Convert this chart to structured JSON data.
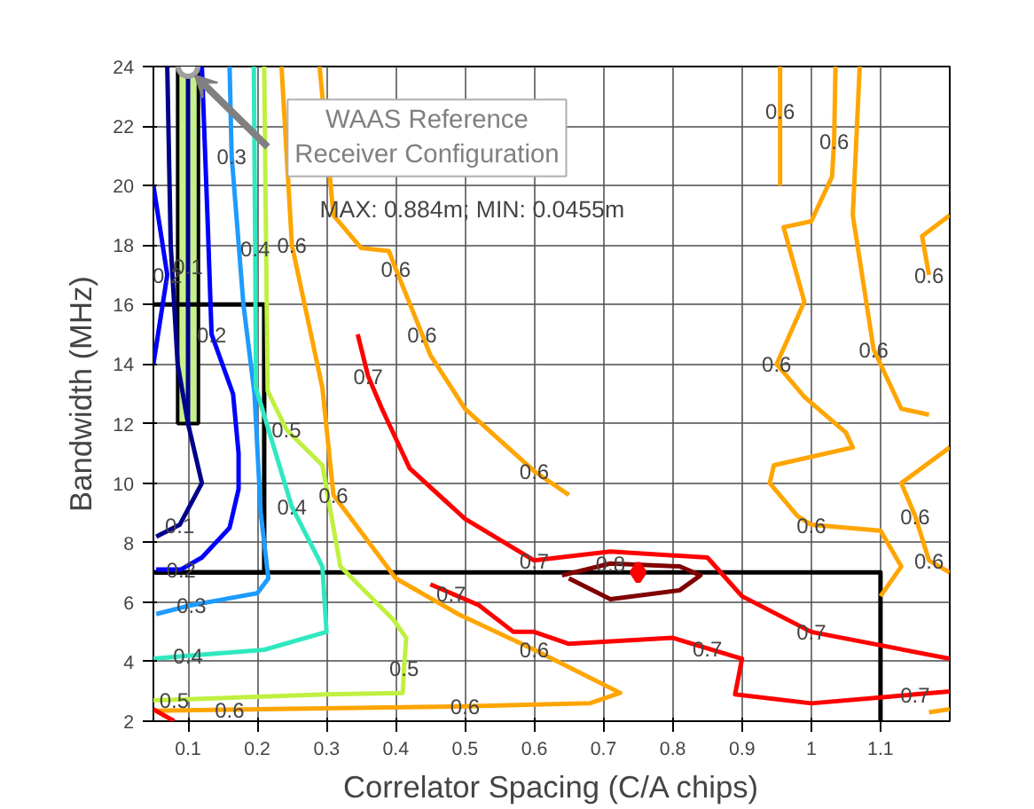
{
  "chart_data": {
    "type": "line",
    "xlabel": "Correlator Spacing (C/A chips)",
    "ylabel": "Bandwidth (MHz)",
    "xlim": [
      0.05,
      1.2
    ],
    "ylim": [
      2,
      24
    ],
    "xticks": [
      0.1,
      0.2,
      0.3,
      0.4,
      0.5,
      0.6,
      0.7,
      0.8,
      0.9,
      {
        "value": 1.0,
        "label": "1"
      },
      1.1
    ],
    "yticks": [
      2,
      4,
      6,
      8,
      10,
      12,
      14,
      16,
      18,
      20,
      22,
      24
    ],
    "grid": true,
    "line_style": "solid",
    "series": [
      {
        "type": "bar",
        "color": "#c8f08c",
        "x": [
          0.1
        ],
        "base": [
          12
        ],
        "values": [
          12
        ]
      },
      {
        "color": "#000000",
        "x": [
          0.05,
          0.21,
          0.21,
          0.05
        ],
        "values": [
          16,
          16,
          7,
          7
        ]
      },
      {
        "color": "#000000",
        "x": [
          0.05,
          1.1,
          1.1
        ],
        "values": [
          7,
          7,
          2
        ]
      },
      {
        "color": "#00008b",
        "x": [
          0.07,
          0.075,
          0.085,
          0.1,
          0.12,
          0.088,
          0.054
        ],
        "values": [
          24,
          18,
          14,
          12,
          10,
          8.6,
          8.2
        ]
      },
      {
        "color": "#00008b",
        "x": [
          0.1,
          0.1,
          0.1
        ],
        "values": [
          24,
          17.3,
          12
        ]
      },
      {
        "color": "#0000ff",
        "x": [
          0.12,
          0.128,
          0.134,
          0.165,
          0.173,
          0.173,
          0.16,
          0.12,
          0.09,
          0.054
        ],
        "values": [
          24,
          19,
          15,
          13,
          11,
          9.8,
          8.5,
          7.5,
          7.1,
          7.1
        ]
      },
      {
        "color": "#0000ff",
        "x": [
          0.05,
          0.07,
          0.05
        ],
        "values": [
          20,
          17,
          14
        ]
      },
      {
        "color": "#1e9bff",
        "x": [
          0.16,
          0.163,
          0.18,
          0.196,
          0.205,
          0.216,
          0.2,
          0.105,
          0.054
        ],
        "values": [
          24,
          21,
          16,
          13,
          9,
          6.8,
          6.3,
          5.9,
          5.6
        ]
      },
      {
        "color": "#30e8c0",
        "x": [
          0.195,
          0.197,
          0.198,
          0.25,
          0.294,
          0.3,
          0.21,
          0.1,
          0.05
        ],
        "values": [
          24,
          17.9,
          13.2,
          9.2,
          7.2,
          5.0,
          4.4,
          4.2,
          4.1
        ]
      },
      {
        "color": "#c0f040",
        "x": [
          0.21,
          0.215,
          0.242,
          0.294,
          0.32,
          0.397,
          0.415,
          0.412,
          0.41,
          0.3,
          0.08,
          0.05
        ],
        "values": [
          24,
          13.1,
          11.8,
          10.6,
          7.2,
          5.4,
          4.8,
          3.8,
          2.95,
          2.9,
          2.72,
          2.7
        ]
      },
      {
        "color": "#ffa500",
        "x": [
          0.235,
          0.25,
          0.294,
          0.31,
          0.4,
          0.49,
          0.6,
          0.724,
          0.68,
          0.5,
          0.16,
          0.05
        ],
        "values": [
          24,
          18,
          13.2,
          9.6,
          6.8,
          5.6,
          4.4,
          2.95,
          2.6,
          2.5,
          2.39,
          2.35
        ]
      },
      {
        "color": "#ffa500",
        "x": [
          0.29,
          0.31,
          0.35,
          0.39,
          0.4,
          0.438,
          0.45,
          0.5,
          0.6,
          0.65
        ],
        "values": [
          24,
          19,
          17.9,
          17.8,
          17.2,
          15.0,
          14.3,
          12.5,
          10.4,
          9.6
        ]
      },
      {
        "color": "#ffa500",
        "x": [
          0.955,
          0.955,
          0.955
        ],
        "values": [
          24,
          22.5,
          20
        ]
      },
      {
        "color": "#ffa500",
        "x": [
          1.035,
          1.033,
          1.03,
          1.0,
          0.96,
          0.99,
          0.95,
          0.99,
          1.05,
          1.06,
          0.946,
          0.94,
          0.98,
          1.0,
          1.1,
          1.13,
          1.1
        ],
        "values": [
          24,
          21.5,
          20.3,
          18.8,
          18.6,
          16.1,
          14,
          12.9,
          11.7,
          11.2,
          10.6,
          10,
          8.9,
          8.6,
          8.4,
          7.2,
          6.2
        ]
      },
      {
        "color": "#ffa500",
        "x": [
          1.07,
          1.06,
          1.09,
          1.13,
          1.17
        ],
        "values": [
          24,
          19,
          14.5,
          12.5,
          12.3
        ]
      },
      {
        "color": "#ffa500",
        "x": [
          1.2,
          1.16,
          1.17
        ],
        "values": [
          19,
          18.3,
          17
        ]
      },
      {
        "color": "#ffa500",
        "x": [
          1.2,
          1.13,
          1.15,
          1.17,
          1.2
        ],
        "values": [
          11.2,
          10,
          8.9,
          7.4,
          7
        ]
      },
      {
        "color": "#ffa500",
        "x": [
          1.2,
          1.17
        ],
        "values": [
          2.4,
          2.3
        ]
      },
      {
        "color": "#ff0000",
        "x": [
          0.345,
          0.36,
          0.38,
          0.42,
          0.5,
          0.6,
          0.71,
          0.85,
          0.9,
          1.0,
          1.2
        ],
        "values": [
          15,
          13.6,
          12.5,
          10.5,
          8.8,
          7.4,
          7.7,
          7.5,
          6.2,
          5.0,
          4.1
        ]
      },
      {
        "color": "#ff0000",
        "x": [
          0.45,
          0.48,
          0.52,
          0.57,
          0.6,
          0.65,
          0.8,
          0.85,
          0.9,
          0.89,
          1.0,
          1.1,
          1.15,
          1.2
        ],
        "values": [
          6.6,
          6.3,
          5.9,
          5.0,
          5.0,
          4.6,
          4.8,
          4.45,
          4.1,
          2.9,
          2.6,
          2.8,
          2.9,
          3.0
        ]
      },
      {
        "color": "#ff0000",
        "x": [
          0.05,
          0.08
        ],
        "values": [
          2.4,
          2.0
        ]
      },
      {
        "color": "#800000",
        "x": [
          0.64,
          0.71,
          0.81,
          0.84,
          0.81,
          0.71,
          0.65
        ],
        "values": [
          6.9,
          7.3,
          7.2,
          6.9,
          6.4,
          6.1,
          6.8
        ]
      },
      {
        "type": "scatter",
        "marker": "diamond",
        "color": "#ff0000",
        "x": [
          0.75
        ],
        "values": [
          7
        ]
      }
    ],
    "annotations": [
      {
        "text": "WAAS Reference Receiver Configuration",
        "x": 0.1,
        "y": 24
      },
      "MAX: 0.884m; MIN: 0.0455m",
      {
        "text": "0.3",
        "x": 0.163,
        "y": 21
      },
      {
        "text": "0.1",
        "x": 0.1,
        "y": 17.3
      },
      {
        "text": "0.2",
        "x": 0.07,
        "y": 17
      },
      {
        "text": "0.4",
        "x": 0.197,
        "y": 17.9
      },
      {
        "text": "0.2",
        "x": 0.134,
        "y": 15
      },
      {
        "text": "0.6",
        "x": 0.25,
        "y": 18
      },
      {
        "text": "0.6",
        "x": 0.4,
        "y": 17.2
      },
      {
        "text": "0.6",
        "x": 0.438,
        "y": 15.0
      },
      {
        "text": "0.7",
        "x": 0.36,
        "y": 13.6
      },
      {
        "text": "0.5",
        "x": 0.242,
        "y": 11.8
      },
      {
        "text": "0.6",
        "x": 0.31,
        "y": 9.6
      },
      {
        "text": "0.4",
        "x": 0.25,
        "y": 9.2
      },
      {
        "text": "0.1",
        "x": 0.088,
        "y": 8.6
      },
      {
        "text": "0.2",
        "x": 0.09,
        "y": 7.1
      },
      {
        "text": "0.3",
        "x": 0.105,
        "y": 5.9
      },
      {
        "text": "0.4",
        "x": 0.1,
        "y": 4.2
      },
      {
        "text": "0.5",
        "x": 0.08,
        "y": 2.72
      },
      {
        "text": "0.6",
        "x": 0.16,
        "y": 2.39
      },
      {
        "text": "0.5",
        "x": 0.412,
        "y": 3.8
      },
      {
        "text": "0.6",
        "x": 0.5,
        "y": 2.5
      },
      {
        "text": "0.6",
        "x": 0.6,
        "y": 4.4
      },
      {
        "text": "0.7",
        "x": 0.48,
        "y": 6.3
      },
      {
        "text": "0.7",
        "x": 0.6,
        "y": 7.4
      },
      {
        "text": "0.7",
        "x": 0.85,
        "y": 4.45
      },
      {
        "text": "0.7",
        "x": 1.0,
        "y": 5.0
      },
      {
        "text": "0.7",
        "x": 1.15,
        "y": 2.9
      },
      {
        "text": "0.8",
        "x": 0.71,
        "y": 7.3
      },
      {
        "text": "0.6",
        "x": 0.6,
        "y": 10.4
      },
      {
        "text": "0.6",
        "x": 0.955,
        "y": 22.5
      },
      {
        "text": "0.6",
        "x": 1.033,
        "y": 21.5
      },
      {
        "text": "0.6",
        "x": 1.17,
        "y": 17
      },
      {
        "text": "0.6",
        "x": 1.09,
        "y": 14.5
      },
      {
        "text": "0.6",
        "x": 0.95,
        "y": 14
      },
      {
        "text": "0.6",
        "x": 1.0,
        "y": 8.6
      },
      {
        "text": "0.6",
        "x": 1.15,
        "y": 8.9
      },
      {
        "text": "0.6",
        "x": 1.17,
        "y": 7.4
      }
    ]
  }
}
